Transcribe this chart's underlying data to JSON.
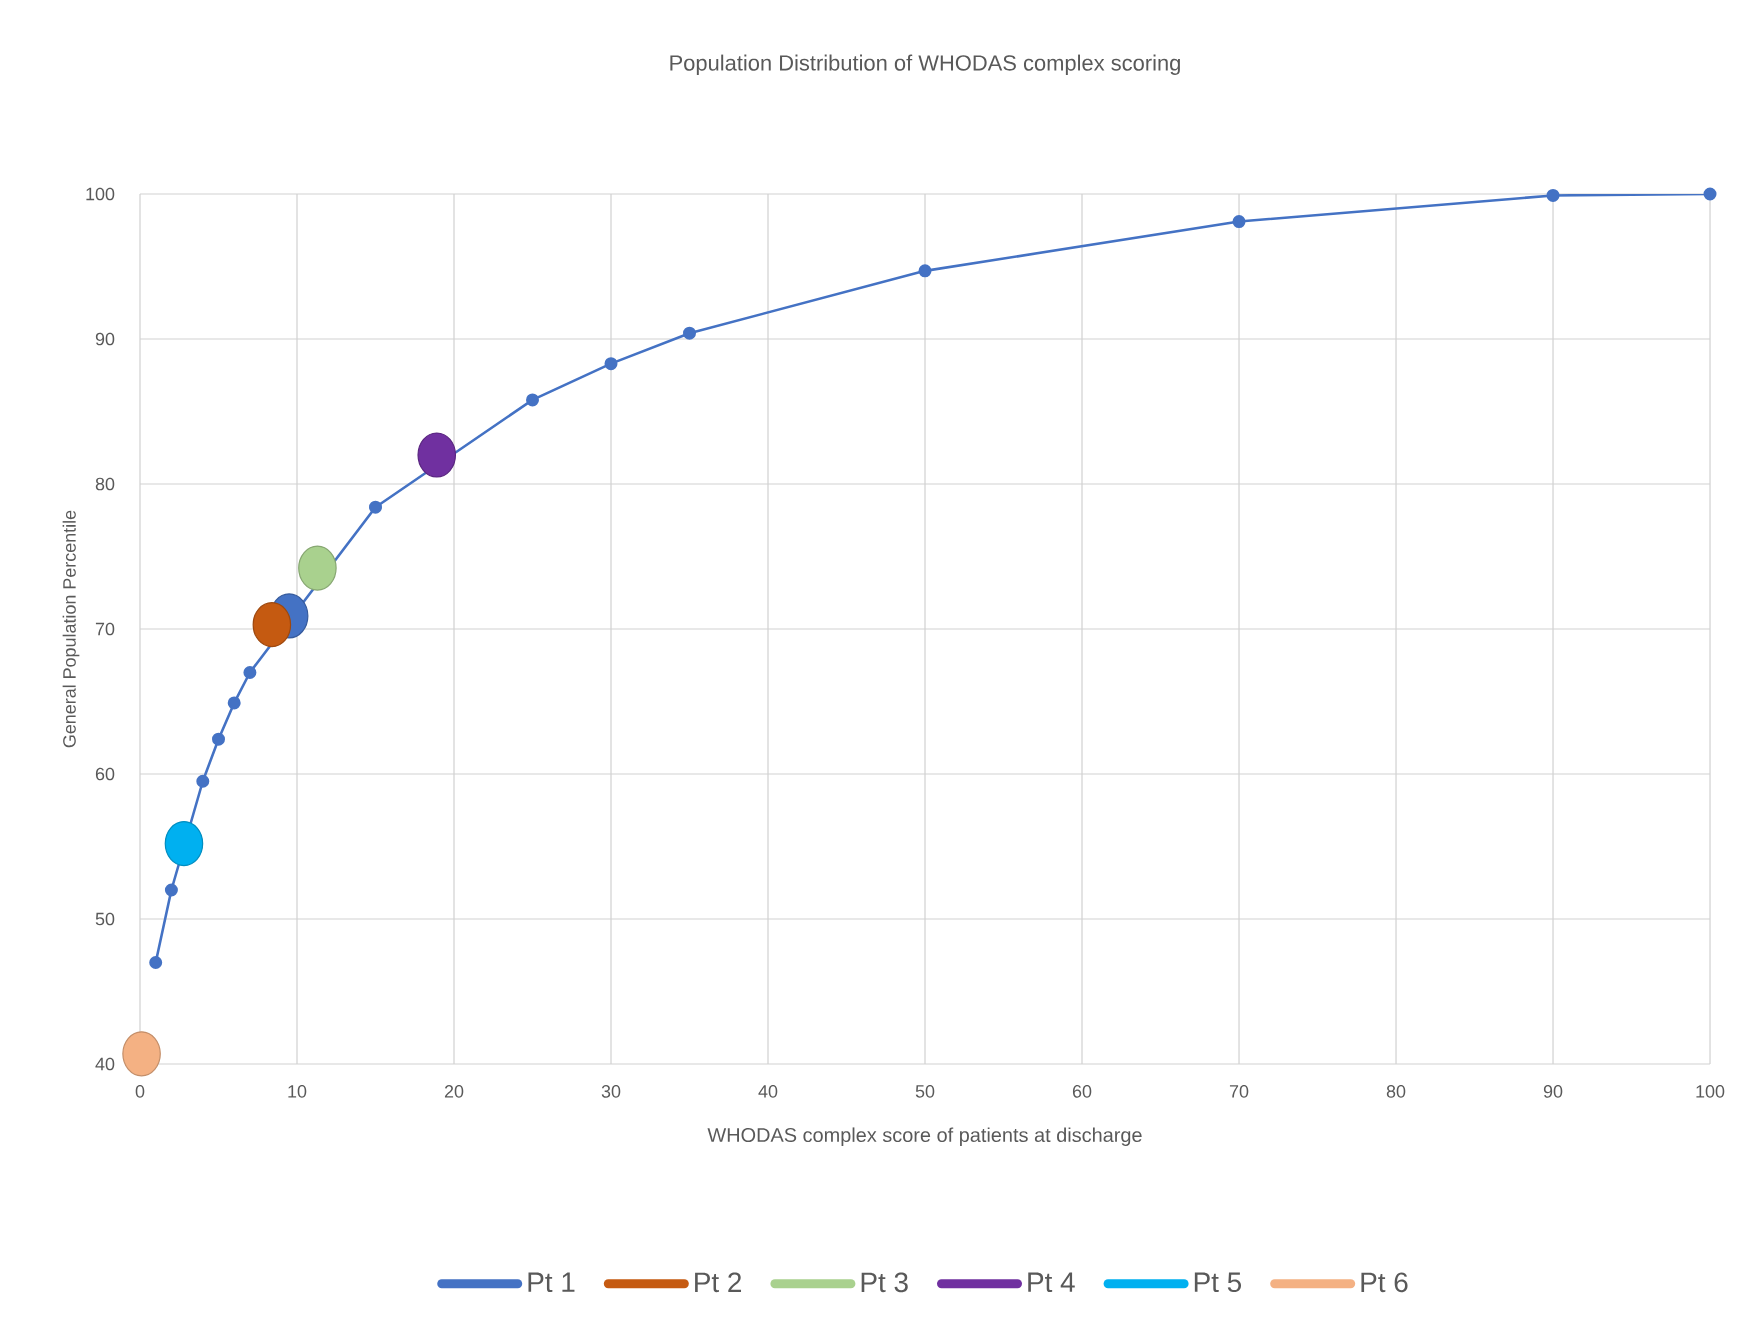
{
  "chart_data": {
    "type": "line",
    "title": "Population Distribution of WHODAS complex scoring",
    "xlabel": "WHODAS complex score of patients at discharge",
    "ylabel": "General Population Percentile",
    "xlim": [
      0,
      100
    ],
    "ylim": [
      40,
      100
    ],
    "xticks": [
      0,
      10,
      20,
      30,
      40,
      50,
      60,
      70,
      80,
      90,
      100
    ],
    "yticks": [
      40,
      50,
      60,
      70,
      80,
      90,
      100
    ],
    "grid": true,
    "legend": "bottom",
    "series": [
      {
        "color": "#4472c4",
        "marker": "circle",
        "x": [
          1,
          2,
          4,
          5,
          6,
          7,
          15,
          25,
          30,
          35,
          50,
          70,
          90,
          100
        ],
        "values": [
          47,
          52,
          59.5,
          62.4,
          64.9,
          67,
          78.4,
          85.8,
          88.3,
          90.4,
          94.7,
          98.1,
          99.9,
          100
        ]
      },
      {
        "type": "scatter",
        "name": "Pt 1",
        "color": "#4472c4",
        "marker": "circle",
        "x": [
          9.5
        ],
        "values": [
          70.9
        ]
      },
      {
        "type": "scatter",
        "name": "Pt 2",
        "color": "#c55a11",
        "marker": "circle",
        "x": [
          8.4
        ],
        "values": [
          70.3
        ]
      },
      {
        "type": "scatter",
        "name": "Pt 3",
        "color": "#a9d18e",
        "marker": "circle",
        "x": [
          11.3
        ],
        "values": [
          74.2
        ]
      },
      {
        "type": "scatter",
        "name": "Pt 4",
        "color": "#7030a0",
        "marker": "circle",
        "x": [
          18.9
        ],
        "values": [
          82
        ]
      },
      {
        "type": "scatter",
        "name": "Pt 5",
        "color": "#00b0f0",
        "marker": "circle",
        "x": [
          2.8
        ],
        "values": [
          55.2
        ]
      },
      {
        "type": "scatter",
        "name": "Pt 6",
        "color": "#f4b183",
        "marker": "circle",
        "x": [
          0.1
        ],
        "values": [
          40.7
        ]
      }
    ]
  }
}
